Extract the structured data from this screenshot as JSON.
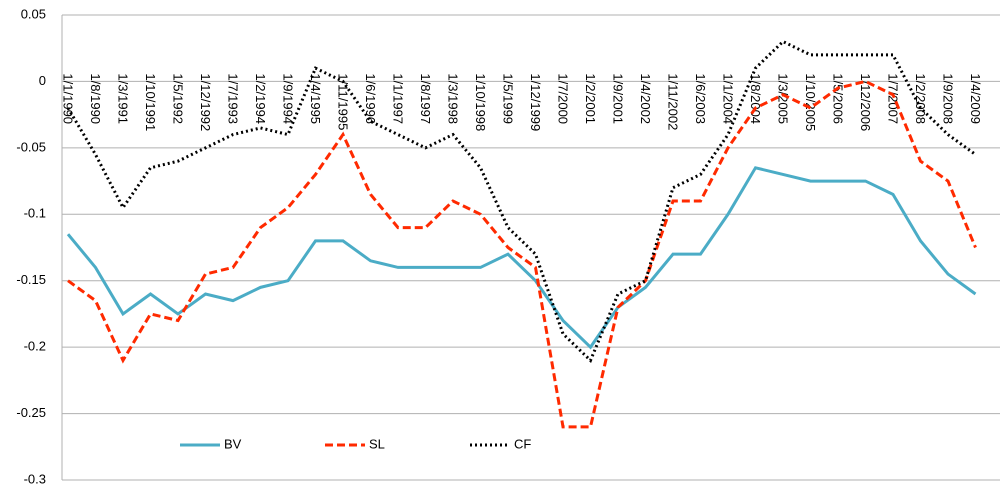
{
  "chart_data": {
    "type": "line",
    "categories": [
      "1/1/1990",
      "1/8/1990",
      "1/3/1991",
      "1/10/1991",
      "1/5/1992",
      "1/12/1992",
      "1/7/1993",
      "1/2/1994",
      "1/9/1994",
      "1/4/1995",
      "1/11/1995",
      "1/6/1996",
      "1/1/1997",
      "1/8/1997",
      "1/3/1998",
      "1/10/1998",
      "1/5/1999",
      "1/12/1999",
      "1/7/2000",
      "1/2/2001",
      "1/9/2001",
      "1/4/2002",
      "1/11/2002",
      "1/6/2003",
      "1/1/2004",
      "1/8/2004",
      "1/3/2005",
      "1/10/2005",
      "1/5/2006",
      "1/12/2006",
      "1/7/2007",
      "1/2/2008",
      "1/9/2008",
      "1/4/2009"
    ],
    "series": [
      {
        "name": "BV",
        "color": "#4bacc6",
        "dash": "solid",
        "values": [
          -0.115,
          -0.14,
          -0.175,
          -0.16,
          -0.175,
          -0.16,
          -0.165,
          -0.155,
          -0.15,
          -0.12,
          -0.12,
          -0.135,
          -0.14,
          -0.14,
          -0.14,
          -0.14,
          -0.13,
          -0.15,
          -0.18,
          -0.2,
          -0.17,
          -0.155,
          -0.13,
          -0.13,
          -0.1,
          -0.065,
          -0.07,
          -0.075,
          -0.075,
          -0.075,
          -0.085,
          -0.12,
          -0.145,
          -0.16
        ]
      },
      {
        "name": "SL",
        "color": "#ff2a00",
        "dash": "dashed",
        "values": [
          -0.15,
          -0.165,
          -0.21,
          -0.175,
          -0.18,
          -0.145,
          -0.14,
          -0.11,
          -0.095,
          -0.07,
          -0.04,
          -0.085,
          -0.11,
          -0.11,
          -0.09,
          -0.1,
          -0.125,
          -0.14,
          -0.26,
          -0.26,
          -0.17,
          -0.15,
          -0.09,
          -0.09,
          -0.05,
          -0.02,
          -0.01,
          -0.02,
          -0.005,
          0.0,
          -0.01,
          -0.06,
          -0.075,
          -0.125
        ]
      },
      {
        "name": "CF",
        "color": "#000000",
        "dash": "dotted",
        "values": [
          -0.02,
          -0.055,
          -0.095,
          -0.065,
          -0.06,
          -0.05,
          -0.04,
          -0.035,
          -0.04,
          0.01,
          0.0,
          -0.03,
          -0.04,
          -0.05,
          -0.04,
          -0.065,
          -0.11,
          -0.13,
          -0.19,
          -0.21,
          -0.16,
          -0.15,
          -0.08,
          -0.07,
          -0.04,
          0.01,
          0.03,
          0.02,
          0.02,
          0.02,
          0.02,
          -0.02,
          -0.04,
          -0.055
        ]
      }
    ],
    "ylim": [
      -0.3,
      0.05
    ],
    "yticks": [
      0.05,
      0,
      -0.05,
      -0.1,
      -0.15,
      -0.2,
      -0.25,
      -0.3
    ],
    "grid": true,
    "legend": "lower-left"
  }
}
